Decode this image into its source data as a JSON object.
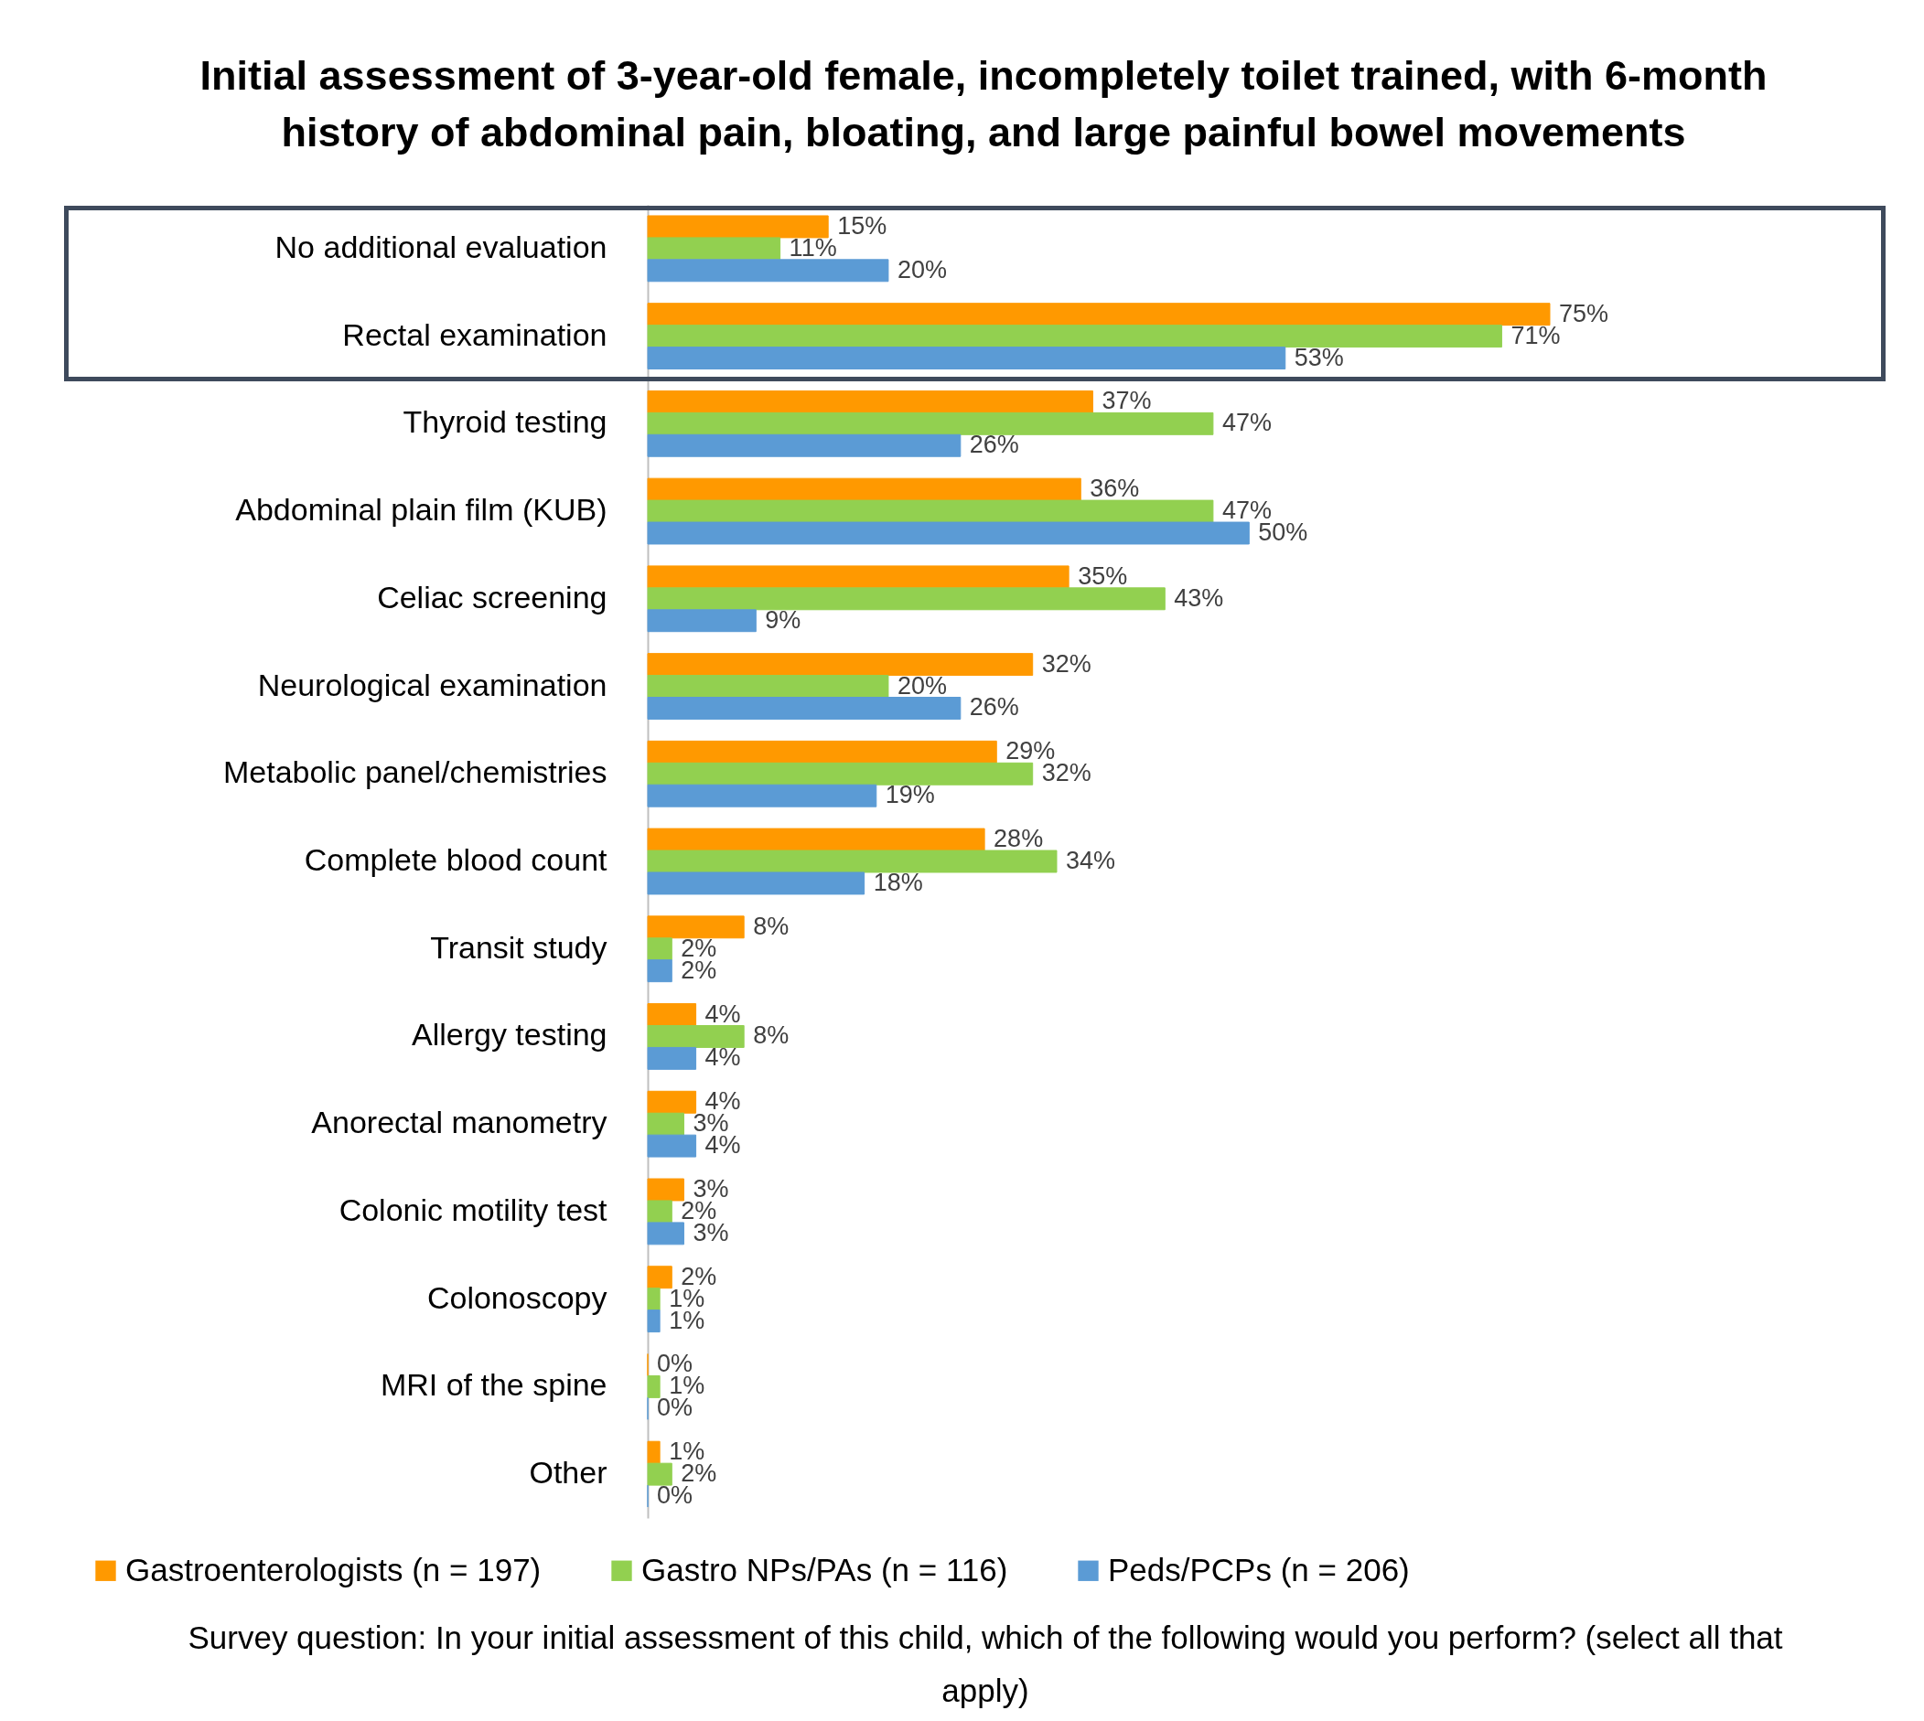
{
  "chart_data": {
    "type": "bar",
    "orientation": "horizontal",
    "title": "Initial assessment of 3-year-old female, incompletely toilet trained, with 6-month history of abdominal pain, bloating, and large painful bowel movements",
    "categories": [
      "No additional evaluation",
      "Rectal examination",
      "Thyroid testing",
      "Abdominal plain film (KUB)",
      "Celiac screening",
      "Neurological examination",
      "Metabolic panel/chemistries",
      "Complete blood count",
      "Transit study",
      "Allergy testing",
      "Anorectal manometry",
      "Colonic motility test",
      "Colonoscopy",
      "MRI of the spine",
      "Other"
    ],
    "series": [
      {
        "name": "Gastroenterologists (n = 197)",
        "color": "#ff9900",
        "values": [
          15,
          75,
          37,
          36,
          35,
          32,
          29,
          28,
          8,
          4,
          4,
          3,
          2,
          0,
          1
        ],
        "value_labels": [
          "15%",
          "75%",
          "37%",
          "36%",
          "35%",
          "32%",
          "29%",
          "28%",
          "8%",
          "4%",
          "4%",
          "3%",
          "2%",
          "0%",
          "1%"
        ]
      },
      {
        "name": "Gastro NPs/PAs (n = 116)",
        "color": "#92d050",
        "values": [
          11,
          71,
          47,
          47,
          43,
          20,
          32,
          34,
          2,
          8,
          3,
          2,
          1,
          1,
          2
        ],
        "value_labels": [
          "11%",
          "71%",
          "47%",
          "47%",
          "43%",
          "20%",
          "32%",
          "34%",
          "2%",
          "8%",
          "3%",
          "2%",
          "1%",
          "1%",
          "2%"
        ]
      },
      {
        "name": "Peds/PCPs (n = 206)",
        "color": "#5b9bd5",
        "values": [
          20,
          53,
          26,
          50,
          9,
          26,
          19,
          18,
          2,
          4,
          4,
          3,
          1,
          0,
          0
        ],
        "value_labels": [
          "20%",
          "53%",
          "26%",
          "50%",
          "9%",
          "26%",
          "19%",
          "18%",
          "2%",
          "4%",
          "4%",
          "3%",
          "1%",
          "0%",
          "0%"
        ]
      }
    ],
    "legend": "bottom",
    "annotations": [
      "Survey question: In your initial assessment of this child, which of the following would you perform? (select all that apply)"
    ]
  }
}
